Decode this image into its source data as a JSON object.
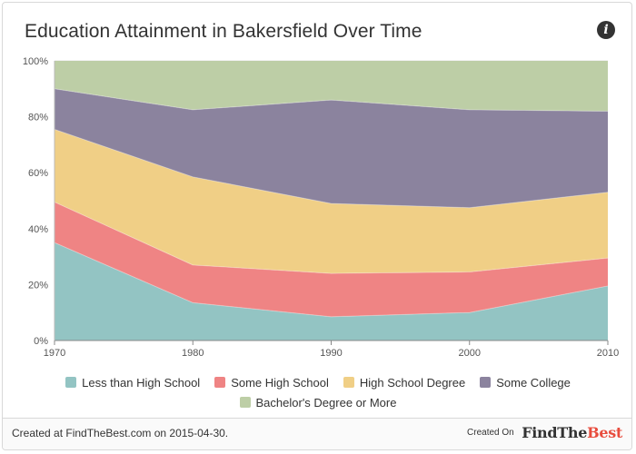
{
  "header": {
    "title": "Education Attainment in Bakersfield Over Time",
    "info_icon": "info-icon"
  },
  "chart_data": {
    "type": "area",
    "stacked": true,
    "normalized": true,
    "x": [
      "1970",
      "1980",
      "1990",
      "2000",
      "2010"
    ],
    "y_ticks": [
      "0%",
      "20%",
      "40%",
      "60%",
      "80%",
      "100%"
    ],
    "ylim": [
      0,
      100
    ],
    "grid": true,
    "legend_position": "bottom",
    "series": [
      {
        "name": "Less than High School",
        "color": "#93c4c3",
        "values": [
          35,
          13.5,
          8.5,
          10,
          19.5
        ]
      },
      {
        "name": "Some High School",
        "color": "#ef8484",
        "values": [
          14.5,
          13.5,
          15.5,
          14.5,
          10
        ]
      },
      {
        "name": "High School Degree",
        "color": "#f0cf86",
        "values": [
          26,
          31.5,
          25,
          23,
          23.5
        ]
      },
      {
        "name": "Some College",
        "color": "#8b839e",
        "values": [
          14.5,
          24,
          37,
          35,
          29
        ]
      },
      {
        "name": "Bachelor's Degree or More",
        "color": "#bdcea6",
        "values": [
          10,
          17.5,
          14,
          17.5,
          18
        ]
      }
    ]
  },
  "footer": {
    "created_text": "Created at FindTheBest.com on 2015-04-30.",
    "created_on_label": "Created On",
    "logo_part1": "FindThe",
    "logo_part2": "Best"
  }
}
